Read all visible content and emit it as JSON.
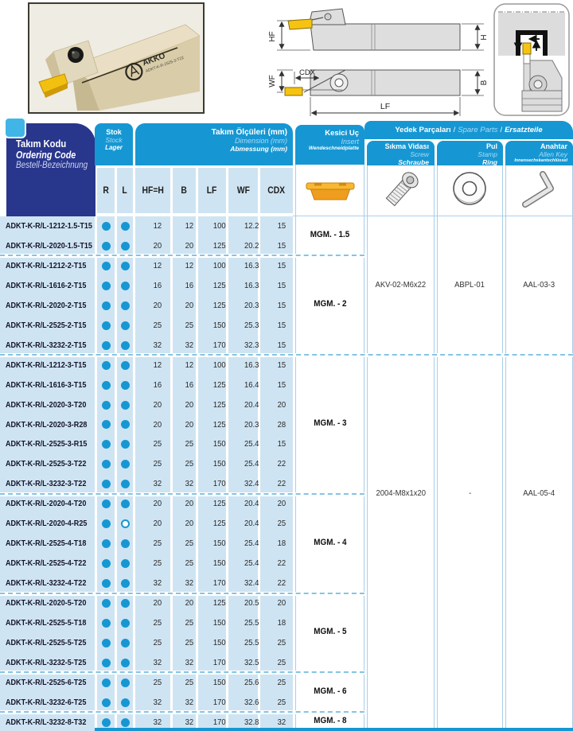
{
  "photo": {
    "brand": "AKKO",
    "code": "ADKT-K-R-2525-3-T22"
  },
  "drawing": {
    "hf": "HF",
    "h": "H",
    "cdx": "CDX",
    "wf": "WF",
    "b": "B",
    "lf": "LF"
  },
  "table": {
    "header": {
      "ordering_code": {
        "tr": "Takım Kodu",
        "en": "Ordering Code",
        "de": "Bestell-Bezeichnung"
      },
      "stock": {
        "tr": "Stok",
        "en": "Stock",
        "de": "Lager"
      },
      "dimensions": {
        "tr": "Takım Ölçüleri (mm)",
        "en": "Dimension (mm)",
        "de": "Abmessung (mm)"
      },
      "insert": {
        "tr": "Kesici Uç",
        "en": "Insert",
        "de": "Wendeschneidplatte"
      },
      "spare": {
        "tr": "Yedek Parçaları",
        "en": "Spare Parts",
        "de": "Ersatzteile",
        "sep": "/"
      },
      "screw": {
        "tr": "Sıkma Vidası",
        "en": "Screw",
        "de": "Schraube"
      },
      "washer": {
        "tr": "Pul",
        "en": "Stamp",
        "de": "Ring"
      },
      "key": {
        "tr": "Anahtar",
        "en": "Allen Key",
        "de": "Innensechskantschlüssel"
      },
      "columns": [
        "R",
        "L",
        "HF=H",
        "B",
        "LF",
        "WF",
        "CDX"
      ]
    },
    "rows": [
      {
        "code": "ADKT-K-R/L-1212-1.5-T15",
        "r": true,
        "l": true,
        "hf": "12",
        "b": "12",
        "lf": "100",
        "wf": "12.2",
        "cdx": "15"
      },
      {
        "code": "ADKT-K-R/L-2020-1.5-T15",
        "r": true,
        "l": true,
        "hf": "20",
        "b": "20",
        "lf": "125",
        "wf": "20.2",
        "cdx": "15"
      },
      {
        "code": "ADKT-K-R/L-1212-2-T15",
        "r": true,
        "l": true,
        "hf": "12",
        "b": "12",
        "lf": "100",
        "wf": "16.3",
        "cdx": "15"
      },
      {
        "code": "ADKT-K-R/L-1616-2-T15",
        "r": true,
        "l": true,
        "hf": "16",
        "b": "16",
        "lf": "125",
        "wf": "16.3",
        "cdx": "15"
      },
      {
        "code": "ADKT-K-R/L-2020-2-T15",
        "r": true,
        "l": true,
        "hf": "20",
        "b": "20",
        "lf": "125",
        "wf": "20.3",
        "cdx": "15"
      },
      {
        "code": "ADKT-K-R/L-2525-2-T15",
        "r": true,
        "l": true,
        "hf": "25",
        "b": "25",
        "lf": "150",
        "wf": "25.3",
        "cdx": "15"
      },
      {
        "code": "ADKT-K-R/L-3232-2-T15",
        "r": true,
        "l": true,
        "hf": "32",
        "b": "32",
        "lf": "170",
        "wf": "32.3",
        "cdx": "15"
      },
      {
        "code": "ADKT-K-R/L-1212-3-T15",
        "r": true,
        "l": true,
        "hf": "12",
        "b": "12",
        "lf": "100",
        "wf": "16.3",
        "cdx": "15"
      },
      {
        "code": "ADKT-K-R/L-1616-3-T15",
        "r": true,
        "l": true,
        "hf": "16",
        "b": "16",
        "lf": "125",
        "wf": "16.4",
        "cdx": "15"
      },
      {
        "code": "ADKT-K-R/L-2020-3-T20",
        "r": true,
        "l": true,
        "hf": "20",
        "b": "20",
        "lf": "125",
        "wf": "20.4",
        "cdx": "20"
      },
      {
        "code": "ADKT-K-R/L-2020-3-R28",
        "r": true,
        "l": true,
        "hf": "20",
        "b": "20",
        "lf": "125",
        "wf": "20.3",
        "cdx": "28"
      },
      {
        "code": "ADKT-K-R/L-2525-3-R15",
        "r": true,
        "l": true,
        "hf": "25",
        "b": "25",
        "lf": "150",
        "wf": "25.4",
        "cdx": "15"
      },
      {
        "code": "ADKT-K-R/L-2525-3-T22",
        "r": true,
        "l": true,
        "hf": "25",
        "b": "25",
        "lf": "150",
        "wf": "25.4",
        "cdx": "22"
      },
      {
        "code": "ADKT-K-R/L-3232-3-T22",
        "r": true,
        "l": true,
        "hf": "32",
        "b": "32",
        "lf": "170",
        "wf": "32.4",
        "cdx": "22"
      },
      {
        "code": "ADKT-K-R/L-2020-4-T20",
        "r": true,
        "l": true,
        "hf": "20",
        "b": "20",
        "lf": "125",
        "wf": "20.4",
        "cdx": "20"
      },
      {
        "code": "ADKT-K-R/L-2020-4-R25",
        "r": true,
        "l": false,
        "hf": "20",
        "b": "20",
        "lf": "125",
        "wf": "20.4",
        "cdx": "25"
      },
      {
        "code": "ADKT-K-R/L-2525-4-T18",
        "r": true,
        "l": true,
        "hf": "25",
        "b": "25",
        "lf": "150",
        "wf": "25.4",
        "cdx": "18"
      },
      {
        "code": "ADKT-K-R/L-2525-4-T22",
        "r": true,
        "l": true,
        "hf": "25",
        "b": "25",
        "lf": "150",
        "wf": "25.4",
        "cdx": "22"
      },
      {
        "code": "ADKT-K-R/L-3232-4-T22",
        "r": true,
        "l": true,
        "hf": "32",
        "b": "32",
        "lf": "170",
        "wf": "32.4",
        "cdx": "22"
      },
      {
        "code": "ADKT-K-R/L-2020-5-T20",
        "r": true,
        "l": true,
        "hf": "20",
        "b": "20",
        "lf": "125",
        "wf": "20.5",
        "cdx": "20"
      },
      {
        "code": "ADKT-K-R/L-2525-5-T18",
        "r": true,
        "l": true,
        "hf": "25",
        "b": "25",
        "lf": "150",
        "wf": "25.5",
        "cdx": "18"
      },
      {
        "code": "ADKT-K-R/L-2525-5-T25",
        "r": true,
        "l": true,
        "hf": "25",
        "b": "25",
        "lf": "150",
        "wf": "25.5",
        "cdx": "25"
      },
      {
        "code": "ADKT-K-R/L-3232-5-T25",
        "r": true,
        "l": true,
        "hf": "32",
        "b": "32",
        "lf": "170",
        "wf": "32.5",
        "cdx": "25"
      },
      {
        "code": "ADKT-K-R/L-2525-6-T25",
        "r": true,
        "l": true,
        "hf": "25",
        "b": "25",
        "lf": "150",
        "wf": "25.6",
        "cdx": "25"
      },
      {
        "code": "ADKT-K-R/L-3232-6-T25",
        "r": true,
        "l": true,
        "hf": "32",
        "b": "32",
        "lf": "170",
        "wf": "32.6",
        "cdx": "25"
      },
      {
        "code": "ADKT-K-R/L-3232-8-T32",
        "r": true,
        "l": true,
        "hf": "32",
        "b": "32",
        "lf": "170",
        "wf": "32.8",
        "cdx": "32"
      }
    ],
    "insert_groups": [
      {
        "label": "MGM. - 1.5",
        "start": 0,
        "span": 2
      },
      {
        "label": "MGM. - 2",
        "start": 2,
        "span": 5
      },
      {
        "label": "MGM. - 3",
        "start": 7,
        "span": 7
      },
      {
        "label": "MGM. - 4",
        "start": 14,
        "span": 5
      },
      {
        "label": "MGM. - 5",
        "start": 19,
        "span": 4
      },
      {
        "label": "MGM. - 6",
        "start": 23,
        "span": 2
      },
      {
        "label": "MGM. - 8",
        "start": 25,
        "span": 1
      }
    ],
    "spare_sections": [
      {
        "start": 0,
        "span": 7,
        "screw": "AKV-02-M6x22",
        "washer": "ABPL-01",
        "key": "AAL-03-3"
      },
      {
        "start": 7,
        "span": 19,
        "screw": "2004-M8x1x20",
        "washer": "-",
        "key": "AAL-05-4"
      }
    ]
  },
  "colors": {
    "accent_blue": "#1697d3",
    "navy": "#28368c",
    "row_blue": "#cfe4f2",
    "insert_orange": "#f2a31d"
  }
}
